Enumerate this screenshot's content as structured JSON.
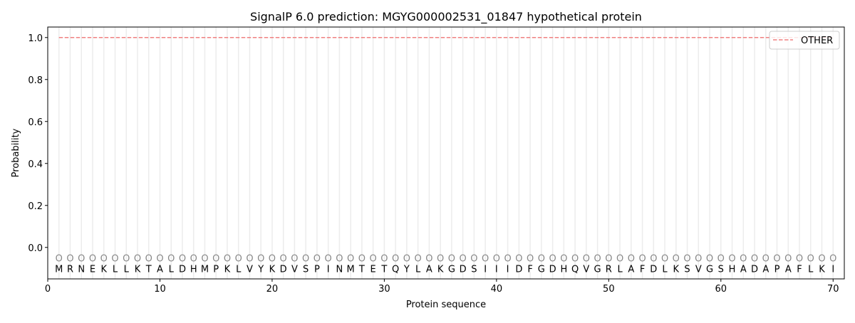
{
  "chart_data": {
    "type": "line",
    "title": "SignalP 6.0 prediction: MGYG000002531_01847 hypothetical protein",
    "xlabel": "Protein sequence",
    "ylabel": "Probability",
    "xlim": [
      0,
      71
    ],
    "ylim": [
      -0.15,
      1.05
    ],
    "xticks": [
      "0",
      "10",
      "20",
      "30",
      "40",
      "50",
      "60",
      "70"
    ],
    "yticks": [
      "0.0",
      "0.2",
      "0.4",
      "0.6",
      "0.8",
      "1.0"
    ],
    "grid": "vertical lines at each residue",
    "legend_position": "top-right",
    "sequence": [
      "M",
      "R",
      "N",
      "E",
      "K",
      "L",
      "L",
      "K",
      "T",
      "A",
      "L",
      "D",
      "H",
      "M",
      "P",
      "K",
      "L",
      "V",
      "Y",
      "K",
      "D",
      "V",
      "S",
      "P",
      "I",
      "N",
      "M",
      "T",
      "E",
      "T",
      "Q",
      "Y",
      "L",
      "A",
      "K",
      "G",
      "D",
      "S",
      "I",
      "I",
      "I",
      "D",
      "F",
      "G",
      "D",
      "H",
      "Q",
      "V",
      "G",
      "R",
      "L",
      "A",
      "F",
      "D",
      "L",
      "K",
      "S",
      "V",
      "G",
      "S",
      "H",
      "A",
      "D",
      "A",
      "P",
      "A",
      "F",
      "L",
      "K",
      "I"
    ],
    "region_marker": "O",
    "series": [
      {
        "name": "OTHER",
        "color": "#f08080",
        "style": "dashed",
        "x_range": [
          1,
          70
        ],
        "value": 1.0
      }
    ]
  }
}
